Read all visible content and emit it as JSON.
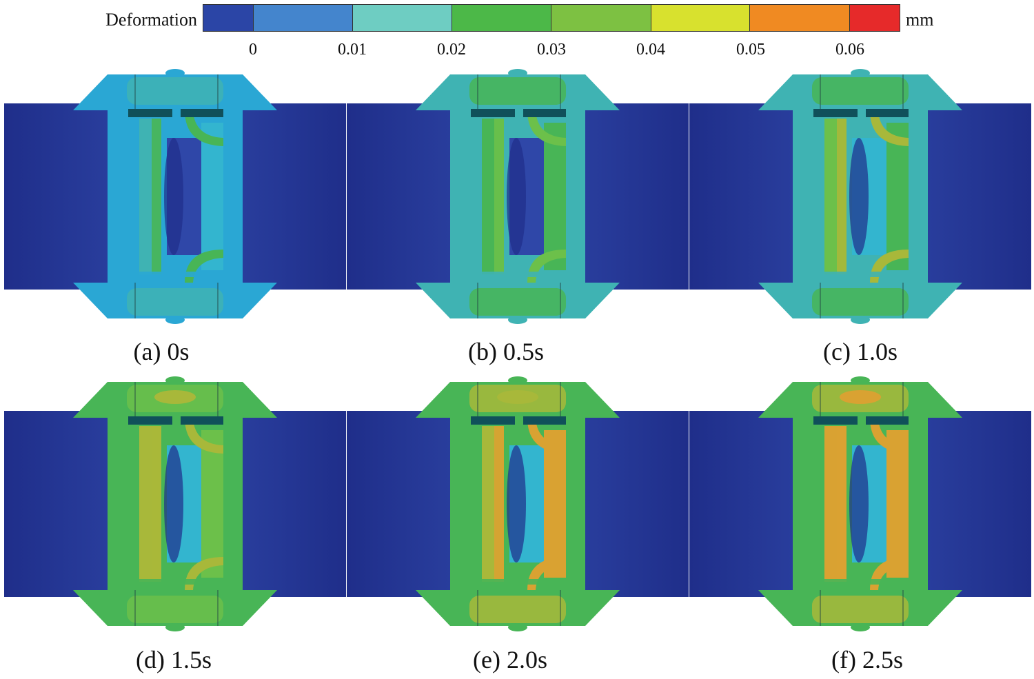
{
  "legend": {
    "title": "Deformation",
    "unit": "mm",
    "tick_labels": [
      "0",
      "0.01",
      "0.02",
      "0.03",
      "0.04",
      "0.05",
      "0.06"
    ],
    "band_colors": [
      "#2b45a6",
      "#4485cd",
      "#6ecdc2",
      "#4cb848",
      "#7dc142",
      "#d8e12e",
      "#f08a22",
      "#e62a2a"
    ]
  },
  "palette": {
    "pipe_dark": "#1f2e8a",
    "pipe_mid": "#2f47a8",
    "cyan_low": "#2aa7d4",
    "cyan_mid": "#33b5cf",
    "teal": "#3fb3b3",
    "green": "#48b556",
    "green_light": "#6cc04a",
    "olive": "#a8b83a",
    "orange": "#d9a232",
    "dark_slot": "#10505a"
  },
  "panels": [
    {
      "caption": "(a) 0s"
    },
    {
      "caption": "(b) 0.5s"
    },
    {
      "caption": "(c) 1.0s"
    },
    {
      "caption": "(d) 1.5s"
    },
    {
      "caption": "(e) 2.0s"
    },
    {
      "caption": "(f) 2.5s"
    }
  ]
}
